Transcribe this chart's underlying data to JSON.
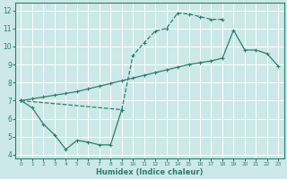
{
  "xlabel": "Humidex (Indice chaleur)",
  "bg_color": "#cce8e8",
  "grid_color": "#ffffff",
  "line_color": "#2e7d6e",
  "xlim": [
    -0.5,
    23.5
  ],
  "ylim": [
    3.8,
    12.4
  ],
  "xticks": [
    0,
    1,
    2,
    3,
    4,
    5,
    6,
    7,
    8,
    9,
    10,
    11,
    12,
    13,
    14,
    15,
    16,
    17,
    18,
    19,
    20,
    21,
    22,
    23
  ],
  "yticks": [
    4,
    5,
    6,
    7,
    8,
    9,
    10,
    11,
    12
  ],
  "line_top_x": [
    0,
    9,
    10,
    11,
    12,
    13,
    14,
    15,
    16,
    17,
    18
  ],
  "line_top_y": [
    7.0,
    6.5,
    9.5,
    10.2,
    10.85,
    11.0,
    11.85,
    11.8,
    11.65,
    11.5,
    11.5
  ],
  "line_mid_x": [
    0,
    1,
    2,
    3,
    4,
    5,
    6,
    7,
    8,
    9,
    10,
    11,
    12,
    13,
    14,
    15,
    16,
    17,
    18,
    19,
    20,
    21,
    22,
    23
  ],
  "line_mid_y": [
    7.0,
    7.1,
    7.2,
    7.3,
    7.4,
    7.5,
    7.65,
    7.8,
    7.95,
    8.1,
    8.25,
    8.4,
    8.55,
    8.7,
    8.85,
    9.0,
    9.1,
    9.2,
    9.35,
    10.9,
    9.8,
    9.8,
    9.6,
    8.9
  ],
  "line_bot_x": [
    0,
    1,
    2,
    3,
    4,
    5,
    6,
    7,
    8,
    9
  ],
  "line_bot_y": [
    7.0,
    6.6,
    5.7,
    5.1,
    4.3,
    4.8,
    4.7,
    4.55,
    4.55,
    6.5
  ],
  "line_top_style": "--",
  "line_mid_style": "-",
  "line_bot_style": "-"
}
